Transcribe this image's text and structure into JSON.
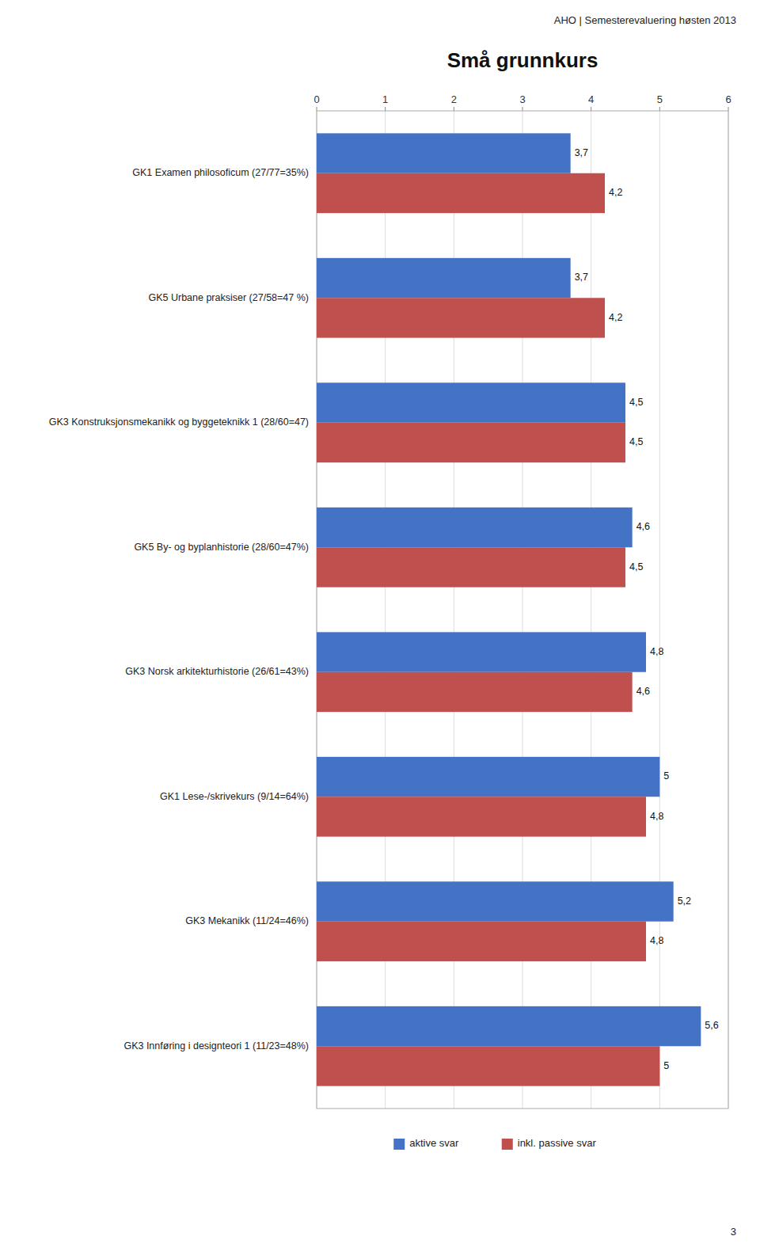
{
  "chart_data": {
    "type": "bar",
    "orientation": "horizontal",
    "title": "Små grunnkurs",
    "annotations": [
      "AHO | Semesterevaluering høsten 2013",
      "3"
    ],
    "categories": [
      "GK1 Examen philosoficum (27/77=35%)",
      "GK5 Urbane praksiser (27/58=47 %)",
      "GK3 Konstruksjonsmekanikk og byggeteknikk 1 (28/60=47)",
      "GK5 By- og byplanhistorie (28/60=47%)",
      "GK3 Norsk arkitekturhistorie (26/61=43%)",
      "GK1 Lese-/skrivekurs (9/14=64%)",
      "GK3 Mekanikk (11/24=46%)",
      "GK3 Innføring i designteori 1 (11/23=48%)"
    ],
    "series": [
      {
        "name": "aktive svar",
        "color": "#4472C4",
        "values": [
          3.7,
          3.7,
          4.5,
          4.6,
          4.8,
          5.0,
          5.2,
          5.6
        ],
        "value_labels": [
          "3,7",
          "3,7",
          "4,5",
          "4,6",
          "4,8",
          "5",
          "5,2",
          "5,6"
        ]
      },
      {
        "name": "inkl. passive svar",
        "color": "#C0504D",
        "values": [
          4.2,
          4.2,
          4.5,
          4.5,
          4.6,
          4.8,
          4.8,
          5.0
        ],
        "value_labels": [
          "4,2",
          "4,2",
          "4,5",
          "4,5",
          "4,6",
          "4,8",
          "4,8",
          "5"
        ]
      }
    ],
    "xlim": [
      0,
      6
    ],
    "xticks": [
      0,
      1,
      2,
      3,
      4,
      5,
      6
    ],
    "grid": true,
    "data_labels": true,
    "legend": "bottom"
  }
}
